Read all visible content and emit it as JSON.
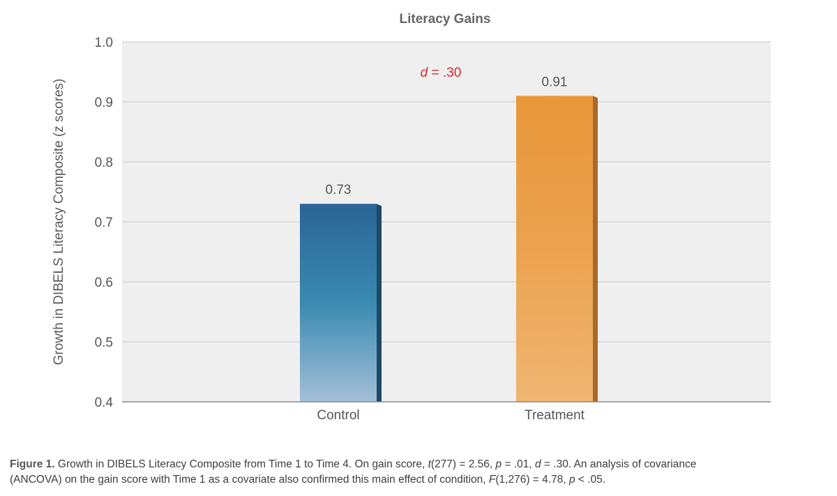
{
  "chart_data": {
    "type": "bar",
    "title": "Literacy Gains",
    "ylabel": "Growth in DIBELS Literacy Composite (z scores)",
    "xlabel": "",
    "categories": [
      "Control",
      "Treatment"
    ],
    "values": [
      0.73,
      0.91
    ],
    "value_labels": [
      "0.73",
      "0.91"
    ],
    "ylim": [
      0.4,
      1.0
    ],
    "yticks": [
      0.4,
      0.5,
      0.6,
      0.7,
      0.8,
      0.9,
      1.0
    ],
    "ytick_labels": [
      "0.4",
      "0.5",
      "0.6",
      "0.7",
      "0.8",
      "0.9",
      "1.0"
    ],
    "grid": true,
    "annotation": {
      "prefix": "d",
      "text": " = .30",
      "color": "#d9262b"
    },
    "bar_colors": [
      {
        "top": "#2a6496",
        "mid": "#3a8ab0",
        "bottom": "#a4bfd8",
        "side": "#1d4866"
      },
      {
        "top": "#e9973a",
        "mid": "#eba24f",
        "bottom": "#efb672",
        "side": "#a9692a"
      }
    ],
    "plot_background": "#efefef",
    "grid_color": "#c9c9c9"
  },
  "caption": {
    "label": "Figure 1.",
    "line1_a": " Growth in DIBELS Literacy Composite from Time 1 to Time 4. On gain score, ",
    "t_sym": "t",
    "line1_b": "(277) = 2.56, ",
    "p_sym": "p",
    "line1_c": " = .01, ",
    "d_sym": "d",
    "line1_d": " = .30. An analysis of covariance",
    "line2_a": "(ANCOVA) on the gain score with Time 1 as a covariate also confirmed this main effect of condition, ",
    "F_sym": "F",
    "line2_b": "(1,276) = 4.78, ",
    "p2_sym": "p",
    "line2_c": " < .05."
  }
}
